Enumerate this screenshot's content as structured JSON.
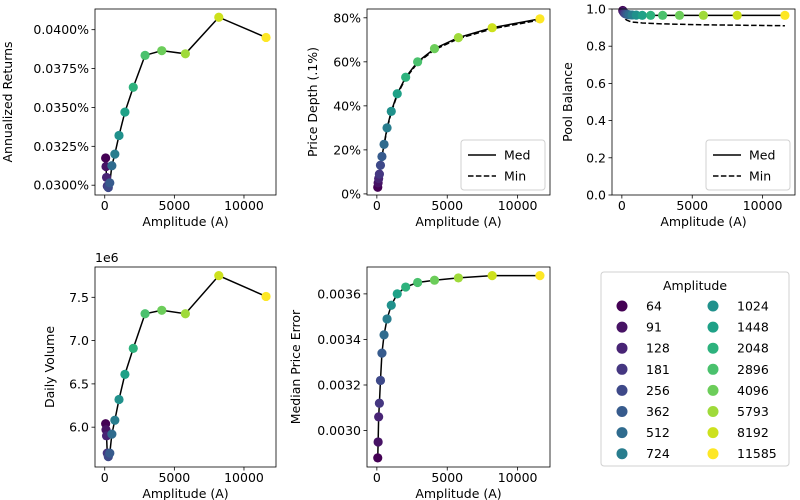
{
  "amplitudes": [
    64,
    91,
    128,
    181,
    256,
    362,
    512,
    724,
    1024,
    1448,
    2048,
    2896,
    4096,
    5793,
    8192,
    11585
  ],
  "colors": [
    "#440154",
    "#471365",
    "#482475",
    "#453781",
    "#3e4989",
    "#375b8d",
    "#2f6b8e",
    "#287d8e",
    "#21918c",
    "#1fa187",
    "#2db27d",
    "#4ac16d",
    "#6ccd5a",
    "#9fda3a",
    "#cde11d",
    "#fde725"
  ],
  "legend": {
    "title": "Amplitude",
    "labels": [
      "64",
      "91",
      "128",
      "181",
      "256",
      "362",
      "512",
      "724",
      "1024",
      "1448",
      "2048",
      "2896",
      "4096",
      "5793",
      "8192",
      "11585"
    ]
  },
  "chart_data": [
    {
      "type": "scatter",
      "xlabel": "Amplitude (A)",
      "ylabel": "Annualized Returns",
      "xlim": [
        -700,
        12300
      ],
      "ylim": [
        0.02937,
        0.04133
      ],
      "xticks": [
        0,
        5000,
        10000
      ],
      "xtick_labels": [
        "0",
        "5000",
        "10000"
      ],
      "yticks": [
        0.03,
        0.0325,
        0.035,
        0.0375,
        0.04
      ],
      "ytick_labels": [
        "0.0300%",
        "0.0325%",
        "0.0350%",
        "0.0375%",
        "0.0400%"
      ],
      "series": [
        {
          "style": "solid",
          "values": [
            0.03175,
            0.0312,
            0.0305,
            0.02995,
            0.02985,
            0.03015,
            0.03125,
            0.032,
            0.0332,
            0.0347,
            0.0363,
            0.03835,
            0.03865,
            0.03845,
            0.0408,
            0.0395
          ]
        }
      ]
    },
    {
      "type": "scatter",
      "xlabel": "Amplitude (A)",
      "ylabel": "Price Depth (.1%)",
      "xlim": [
        -700,
        12300
      ],
      "ylim": [
        -0.005,
        0.84
      ],
      "xticks": [
        0,
        5000,
        10000
      ],
      "xtick_labels": [
        "0",
        "5000",
        "10000"
      ],
      "yticks": [
        0,
        0.2,
        0.4,
        0.6,
        0.8
      ],
      "ytick_labels": [
        "0%",
        "20%",
        "40%",
        "60%",
        "80%"
      ],
      "legend": [
        "Med",
        "Min"
      ],
      "series": [
        {
          "name": "Med",
          "style": "solid",
          "values": [
            0.03,
            0.05,
            0.07,
            0.09,
            0.13,
            0.17,
            0.225,
            0.3,
            0.375,
            0.455,
            0.53,
            0.6,
            0.66,
            0.71,
            0.755,
            0.795
          ]
        },
        {
          "name": "Min",
          "style": "dashed",
          "values": [
            0.025,
            0.045,
            0.065,
            0.085,
            0.125,
            0.165,
            0.22,
            0.295,
            0.37,
            0.45,
            0.525,
            0.595,
            0.655,
            0.705,
            0.75,
            0.79
          ]
        }
      ]
    },
    {
      "type": "scatter",
      "xlabel": "Amplitude (A)",
      "ylabel": "Pool Balance",
      "xlim": [
        -700,
        12300
      ],
      "ylim": [
        0,
        1.0
      ],
      "xticks": [
        0,
        5000,
        10000
      ],
      "xtick_labels": [
        "0",
        "5000",
        "10000"
      ],
      "yticks": [
        0,
        0.2,
        0.4,
        0.6,
        0.8,
        1.0
      ],
      "ytick_labels": [
        "0.0",
        "0.2",
        "0.4",
        "0.6",
        "0.8",
        "1.0"
      ],
      "legend": [
        "Med",
        "Min"
      ],
      "series": [
        {
          "name": "Med",
          "style": "solid",
          "values": [
            0.992,
            0.988,
            0.983,
            0.978,
            0.974,
            0.971,
            0.969,
            0.968,
            0.967,
            0.966,
            0.966,
            0.966,
            0.966,
            0.966,
            0.966,
            0.966
          ]
        },
        {
          "name": "Min",
          "style": "dashed",
          "values": [
            0.985,
            0.975,
            0.965,
            0.955,
            0.945,
            0.94,
            0.935,
            0.93,
            0.928,
            0.925,
            0.923,
            0.92,
            0.918,
            0.915,
            0.913,
            0.91
          ]
        }
      ]
    },
    {
      "type": "scatter",
      "xlabel": "Amplitude (A)",
      "ylabel": "Daily Volume",
      "offset_text": "1e6",
      "xlim": [
        -700,
        12300
      ],
      "ylim": [
        5.54,
        7.85
      ],
      "xticks": [
        0,
        5000,
        10000
      ],
      "xtick_labels": [
        "0",
        "5000",
        "10000"
      ],
      "yticks": [
        6.0,
        6.5,
        7.0,
        7.5
      ],
      "ytick_labels": [
        "6.0",
        "6.5",
        "7.0",
        "7.5"
      ],
      "series": [
        {
          "style": "solid",
          "values": [
            6.04,
            5.97,
            5.9,
            5.7,
            5.66,
            5.7,
            5.92,
            6.08,
            6.32,
            6.61,
            6.91,
            7.31,
            7.35,
            7.31,
            7.75,
            7.51
          ]
        }
      ]
    },
    {
      "type": "scatter",
      "xlabel": "Amplitude (A)",
      "ylabel": "Median Price Error",
      "xlim": [
        -700,
        12300
      ],
      "ylim": [
        0.00284,
        0.003718
      ],
      "xticks": [
        0,
        5000,
        10000
      ],
      "xtick_labels": [
        "0",
        "5000",
        "10000"
      ],
      "yticks": [
        0.003,
        0.0032,
        0.0034,
        0.0036
      ],
      "ytick_labels": [
        "0.0030",
        "0.0032",
        "0.0034",
        "0.0036"
      ],
      "series": [
        {
          "style": "solid",
          "values": [
            0.00288,
            0.00295,
            0.00306,
            0.00312,
            0.00322,
            0.00334,
            0.00342,
            0.00349,
            0.00355,
            0.0036,
            0.00363,
            0.00365,
            0.00366,
            0.00367,
            0.00368,
            0.00368
          ]
        }
      ]
    }
  ]
}
